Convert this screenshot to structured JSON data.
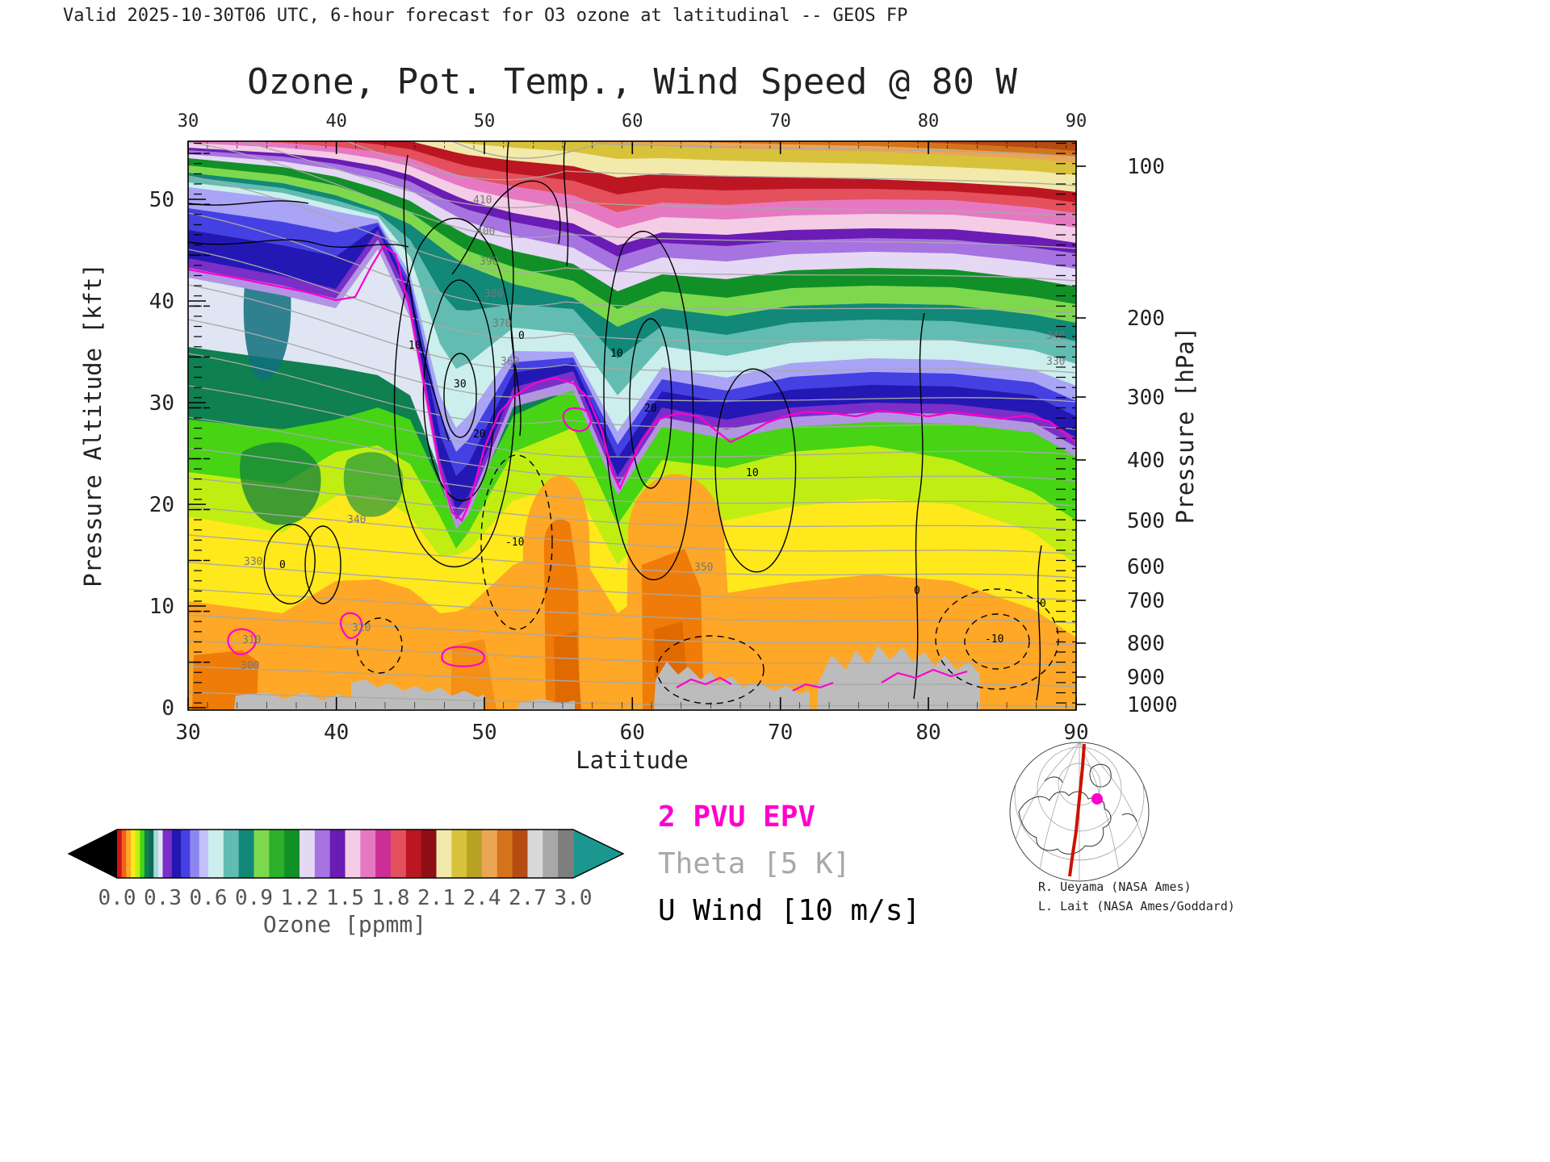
{
  "header": {
    "text": "Valid 2025-10-30T06 UTC, 6-hour forecast for O3 ozone at latitudinal -- GEOS FP"
  },
  "plot": {
    "title": "Ozone, Pot. Temp., Wind Speed @ 80 W",
    "x_axis": {
      "label": "Latitude",
      "ticks": [
        "30",
        "40",
        "50",
        "60",
        "70",
        "80",
        "90"
      ]
    },
    "y_axis_left": {
      "label": "Pressure Altitude [kft]",
      "ticks": [
        "0",
        "10",
        "20",
        "30",
        "40",
        "50"
      ]
    },
    "y_axis_right": {
      "label": "Pressure [hPa]",
      "ticks": [
        "100",
        "200",
        "300",
        "400",
        "500",
        "600",
        "700",
        "800",
        "900",
        "1000"
      ]
    }
  },
  "colorbar": {
    "label": "Ozone [ppmm]",
    "tick_labels": [
      "0.0",
      "0.3",
      "0.6",
      "0.9",
      "1.2",
      "1.5",
      "1.8",
      "2.1",
      "2.4",
      "2.7",
      "3.0"
    ],
    "under_color": "#000000",
    "over_color": "#1a9890",
    "segments": [
      {
        "range": "0.0-0.3",
        "colors": [
          "#cc1414",
          "#f0611c",
          "#ffa726",
          "#ffe81c",
          "#c0ee12",
          "#46d414",
          "#0f8050",
          "#106858",
          "#9edcd4",
          "#dfe5f2"
        ]
      },
      {
        "range": "0.3-0.6",
        "colors": [
          "#7c2ec8",
          "#2418b4",
          "#4540e2",
          "#8c86f0",
          "#c2c0f8"
        ]
      },
      {
        "range": "0.6-0.9",
        "colors": [
          "#cceeec",
          "#62bcb2",
          "#118878"
        ]
      },
      {
        "range": "0.9-1.2",
        "colors": [
          "#7ed84e",
          "#2cb02c",
          "#129028"
        ]
      },
      {
        "range": "1.2-1.5",
        "colors": [
          "#e4d8f4",
          "#a773e0",
          "#6a1cb4"
        ]
      },
      {
        "range": "1.5-1.8",
        "colors": [
          "#f4cce6",
          "#e678c2",
          "#cc2e96"
        ]
      },
      {
        "range": "1.8-2.1",
        "colors": [
          "#e4505c",
          "#bc1622",
          "#8e0e16"
        ]
      },
      {
        "range": "2.1-2.4",
        "colors": [
          "#f2eaaa",
          "#d8c23c",
          "#b8a224"
        ]
      },
      {
        "range": "2.4-2.7",
        "colors": [
          "#eaa653",
          "#d4731c",
          "#b44c14"
        ]
      },
      {
        "range": "2.7-3.0",
        "colors": [
          "#d8d8d8",
          "#a8a8a8",
          "#7e7e7e"
        ]
      }
    ]
  },
  "legend": {
    "epv": {
      "label": "2 PVU EPV",
      "color": "#ff00cc"
    },
    "theta": {
      "label": "Theta [5 K]",
      "color": "#a8a8a8"
    },
    "wind": {
      "label": "U Wind [10 m/s]",
      "color": "#000000"
    }
  },
  "credits": {
    "line1": "R. Ueyama (NASA Ames)",
    "line2": "L. Lait (NASA Ames/Goddard)"
  },
  "contour_labels": {
    "theta": [
      "300",
      "310",
      "320",
      "330",
      "340",
      "350",
      "360",
      "370",
      "380",
      "390",
      "400",
      "410",
      "340",
      "330"
    ],
    "wind": [
      "10",
      "30",
      "20",
      "0",
      "-10",
      "10",
      "20",
      "10",
      "0",
      "-10",
      "0",
      "0"
    ]
  },
  "chart_data": {
    "type": "heatmap",
    "subtype": "filled-contour latitude-height cross-section",
    "title": "Ozone, Pot. Temp., Wind Speed @ 80 W",
    "xlabel": "Latitude",
    "ylabel_left": "Pressure Altitude [kft]",
    "ylabel_right": "Pressure [hPa]",
    "xlim": [
      30,
      90
    ],
    "ylim_kft": [
      0,
      56
    ],
    "x_major_ticks": [
      30,
      40,
      50,
      60,
      70,
      80,
      90
    ],
    "y_left_ticks_kft": [
      0,
      10,
      20,
      30,
      40,
      50
    ],
    "pressure_ticks_hpa": [
      100,
      200,
      300,
      400,
      500,
      600,
      700,
      800,
      900,
      1000
    ],
    "fill_variable": "Ozone [ppmm]",
    "fill_levels": [
      0.0,
      0.3,
      0.6,
      0.9,
      1.2,
      1.5,
      1.8,
      2.1,
      2.4,
      2.7,
      3.0
    ],
    "overlays": [
      {
        "name": "2 PVU EPV",
        "color": "#ff00cc",
        "description": "dynamical tropopause contour"
      },
      {
        "name": "Theta",
        "interval": "5 K",
        "color": "#a8a8a8",
        "labeled_values": [
          300,
          310,
          320,
          330,
          340,
          350,
          360,
          370,
          380,
          390,
          400,
          410
        ]
      },
      {
        "name": "U Wind",
        "interval": "10 m/s",
        "color": "#000000",
        "labeled_values": [
          -10,
          0,
          10,
          20,
          30
        ],
        "negative_style": "dashed"
      }
    ],
    "tropopause_2pvu_altitude_kft_by_latitude": {
      "30": 42,
      "35": 40,
      "40": 37,
      "43": 39,
      "45": 43,
      "47": 28,
      "48": 19,
      "50": 26,
      "53": 30,
      "55": 31,
      "57": 28,
      "59": 21,
      "61": 25,
      "64": 28,
      "67": 27,
      "70": 29,
      "75": 29,
      "80": 29,
      "85": 29,
      "90": 26
    },
    "ozone_field_summary": {
      "troposphere": "0.05-0.3 ppmm; orange/yellow lows near the surface, bright greens in mid/upper troposphere, pale shades just below the tropopause",
      "tropopause_band": "0.3-0.6 ppmm navy/blue band with purple fringe, deep folds near 47N and 59N",
      "stratosphere": "0.6-2.7 ppmm increasing with altitude: teal, green, purple, pink, red, yellow, orange layered bands descending toward the pole"
    },
    "surface_terrain": "gray masked topography along the bottom between about 33N and 83N",
    "grid": false,
    "legend_position": "below plot, right of colorbar"
  }
}
